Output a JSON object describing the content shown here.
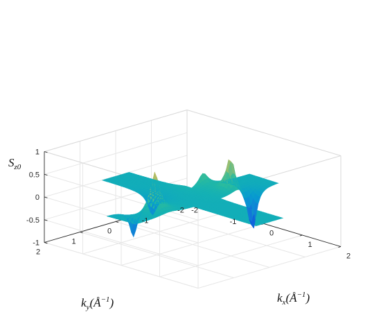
{
  "chart_data": {
    "type": "surface3d",
    "title": "",
    "colormap": "parula",
    "grid": true,
    "box": true,
    "zlabel": {
      "main": "S",
      "sub": "z0"
    },
    "xlabel": {
      "main": "k",
      "sub": "x",
      "unit_open": "(",
      "unit_letter": "Å",
      "unit_exp": "−1",
      "unit_close": ")"
    },
    "ylabel": {
      "main": "k",
      "sub": "y",
      "unit_open": "(",
      "unit_letter": "Å",
      "unit_exp": "−1",
      "unit_close": ")"
    },
    "xlim": [
      -2,
      2
    ],
    "ylim": [
      -2,
      2
    ],
    "zlim": [
      -1,
      1
    ],
    "x_ticks": [
      "-2",
      "-1",
      "0",
      "1",
      "2"
    ],
    "y_ticks": [
      "2",
      "1",
      "0",
      "-1",
      "-2"
    ],
    "z_ticks": [
      "1",
      "0.5",
      "0",
      "-0.5",
      "-1"
    ],
    "features": [
      {
        "kind": "peak",
        "kx": 0.0,
        "ky": 1.05,
        "z": 0.9
      },
      {
        "kind": "peak",
        "kx": 0.15,
        "ky": -0.9,
        "z": 0.8
      },
      {
        "kind": "peak",
        "kx": -0.5,
        "ky": -0.7,
        "z": 0.68
      },
      {
        "kind": "dip",
        "kx": -0.45,
        "ky": 1.25,
        "z": -1.0
      },
      {
        "kind": "dip",
        "kx": 0.35,
        "ky": -1.3,
        "z": -0.95
      },
      {
        "kind": "dip",
        "kx": -0.7,
        "ky": 0.45,
        "z": -0.65
      }
    ]
  }
}
